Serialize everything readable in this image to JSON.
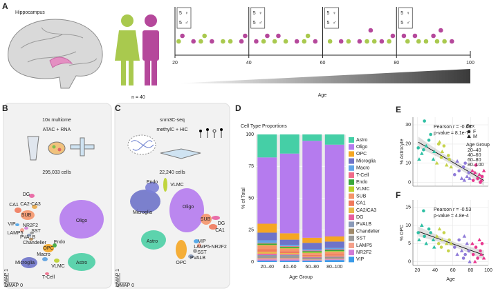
{
  "panel_labels": [
    "A",
    "B",
    "C",
    "D",
    "E",
    "F"
  ],
  "panel_a": {
    "title": "Hippocampus",
    "n_label": "n = 40",
    "female_symbol": "♀",
    "male_symbol": "♂",
    "bin_counts": [
      {
        "female": 5,
        "male": 5
      },
      {
        "female": 5,
        "male": 5
      },
      {
        "female": 5,
        "male": 5
      },
      {
        "female": 5,
        "male": 5
      }
    ]
  },
  "panel_b": {
    "title": "10x multiome",
    "subtitle": "ATAC + RNA",
    "cells": "295,033 cells",
    "umap_x": "UMAP 0",
    "umap_y": "UMAP 1",
    "clusters": [
      "Oligo",
      "Astro",
      "OPC",
      "Microglia",
      "Macro",
      "Endo",
      "VLMC",
      "T-Cell",
      "DG",
      "CA2-CA3",
      "CA1",
      "SUB",
      "VIP",
      "NR2F2",
      "LAMP5",
      "SST",
      "PVALB",
      "Chandelier"
    ]
  },
  "panel_c": {
    "title": "snm3C-seq",
    "subtitle": "methylC + HiC",
    "cells": "22,240 cells",
    "umap_x": "UMAP 0",
    "umap_y": "UMAP 1",
    "clusters": [
      "Oligo",
      "Microglia",
      "Endo",
      "VLMC",
      "SUB",
      "DG",
      "CA1",
      "Astro",
      "VIP",
      "LAMP5-NR2F2",
      "SST",
      "PVALB",
      "OPC"
    ]
  },
  "chart_data": [
    {
      "type": "dot",
      "xlabel": "Age",
      "xlim": [
        20,
        100
      ],
      "xticks": [
        20,
        40,
        60,
        80,
        100
      ],
      "series": [
        {
          "color": "#a9c94e",
          "x": [
            21,
            27,
            28,
            33,
            35,
            44,
            47,
            50,
            55,
            56,
            62,
            67,
            72,
            74,
            78,
            83,
            86,
            88,
            91,
            93
          ]
        },
        {
          "color": "#b5489b",
          "x": [
            22,
            25,
            30,
            38,
            39,
            42,
            45,
            48,
            53,
            58,
            65,
            70,
            73,
            76,
            79,
            82,
            85,
            90,
            92,
            95
          ]
        }
      ]
    },
    {
      "type": "stacked_bar",
      "title": "Cell Type Proportions",
      "xlabel": "Age Group",
      "ylabel": "% of Total",
      "categories": [
        "20–40",
        "40–60",
        "60–80",
        "80–100"
      ],
      "ylim": [
        0,
        100
      ],
      "yticks": [
        0,
        25,
        50,
        75,
        100
      ],
      "grid": true,
      "series": [
        {
          "name": "Astro",
          "color": "#45cfa6",
          "values": [
            18,
            15,
            5,
            8
          ]
        },
        {
          "name": "Oligo",
          "color": "#b57bee",
          "values": [
            52,
            62.5,
            76,
            72
          ]
        },
        {
          "name": "OPC",
          "color": "#f5a623",
          "values": [
            7,
            5,
            4,
            4
          ]
        },
        {
          "name": "Microglia",
          "color": "#6e73c9",
          "values": [
            6,
            4,
            5,
            5
          ]
        },
        {
          "name": "Macro",
          "color": "#62a6e8",
          "values": [
            2,
            1,
            1,
            1
          ]
        },
        {
          "name": "T-Cell",
          "color": "#f06b8a",
          "values": [
            0.5,
            0.5,
            0.5,
            0.5
          ]
        },
        {
          "name": "Endo",
          "color": "#3aa83a",
          "values": [
            1,
            1,
            1,
            1
          ]
        },
        {
          "name": "VLMC",
          "color": "#bad12a",
          "values": [
            0.5,
            0.5,
            0.5,
            0.5
          ]
        },
        {
          "name": "SUB",
          "color": "#f5956a",
          "values": [
            3,
            2,
            1.5,
            2
          ]
        },
        {
          "name": "CA1",
          "color": "#f07a5c",
          "values": [
            2,
            1.5,
            1,
            1
          ]
        },
        {
          "name": "CA2/CA3",
          "color": "#e8b84a",
          "values": [
            1.5,
            1,
            0.5,
            0.5
          ]
        },
        {
          "name": "DG",
          "color": "#e85fa0",
          "values": [
            1,
            0.5,
            0.5,
            0.5
          ]
        },
        {
          "name": "PVALB",
          "color": "#8a9ab8",
          "values": [
            1,
            1,
            0.5,
            0.5
          ]
        },
        {
          "name": "Chandelier",
          "color": "#a08a6a",
          "values": [
            0.5,
            0.5,
            0.5,
            0.5
          ]
        },
        {
          "name": "SST",
          "color": "#9a9a9a",
          "values": [
            1,
            1,
            0.5,
            0.5
          ]
        },
        {
          "name": "LAMP5",
          "color": "#f5a08a",
          "values": [
            1,
            1,
            0.5,
            0.5
          ]
        },
        {
          "name": "NR2F2",
          "color": "#d17bd6",
          "values": [
            1,
            1,
            0.5,
            0.5
          ]
        },
        {
          "name": "VIP",
          "color": "#3a9be8",
          "values": [
            1,
            1,
            1,
            1.5
          ]
        }
      ]
    },
    {
      "type": "scatter",
      "ylabel": "% Astrocyte",
      "xlim": [
        15,
        100
      ],
      "xticks": [
        20,
        40,
        60,
        80,
        100
      ],
      "ylim": [
        -2,
        34
      ],
      "yticks": [
        0,
        10,
        20,
        30
      ],
      "grid": true,
      "annotations": [
        "Pearson r = -0.69",
        "p-value = 8.1e-7"
      ],
      "legend": {
        "sex_title": "Sex",
        "sex_labels": [
          "F",
          "M"
        ],
        "group_title": "Age Group"
      },
      "series": [
        {
          "name": "20–40",
          "color": "#2ebfa3",
          "x": [
            21,
            22,
            25,
            27,
            28,
            30,
            33,
            35,
            38,
            39
          ],
          "values": [
            18,
            12,
            15,
            17,
            32,
            19,
            22,
            25,
            12,
            16
          ],
          "sex": [
            "F",
            "M",
            "M",
            "F",
            "F",
            "M",
            "F",
            "F",
            "M",
            "M"
          ]
        },
        {
          "name": "40–60",
          "color": "#c6d34a",
          "x": [
            42,
            44,
            45,
            47,
            48,
            50,
            53,
            55,
            56,
            58
          ],
          "values": [
            10,
            20,
            21,
            13,
            16,
            19,
            9,
            14,
            12,
            8
          ],
          "sex": [
            "M",
            "F",
            "M",
            "F",
            "M",
            "F",
            "M",
            "F",
            "F",
            "M"
          ]
        },
        {
          "name": "60–80",
          "color": "#8f7bd8",
          "x": [
            62,
            65,
            67,
            70,
            72,
            73,
            74,
            76,
            78,
            79
          ],
          "values": [
            4,
            11,
            6,
            2,
            8,
            1,
            10,
            3,
            5,
            2
          ],
          "sex": [
            "F",
            "M",
            "F",
            "M",
            "F",
            "M",
            "F",
            "M",
            "F",
            "M"
          ]
        },
        {
          "name": "80–100",
          "color": "#e8378e",
          "x": [
            82,
            83,
            85,
            86,
            88,
            90,
            91,
            92,
            93,
            95
          ],
          "values": [
            6,
            1,
            5,
            9,
            2,
            4,
            0,
            1,
            3,
            6
          ],
          "sex": [
            "M",
            "F",
            "M",
            "F",
            "F",
            "M",
            "F",
            "M",
            "F",
            "M"
          ]
        }
      ]
    },
    {
      "type": "scatter",
      "xlabel": "Age",
      "ylabel": "% OPC",
      "xlim": [
        15,
        100
      ],
      "xticks": [
        20,
        40,
        60,
        80,
        100
      ],
      "ylim": [
        -1,
        17
      ],
      "yticks": [
        0,
        5,
        10,
        15
      ],
      "grid": true,
      "annotations": [
        "Pearson r = -0.53",
        "p-value = 4.8e-4"
      ],
      "series": [
        {
          "color": "#2ebfa3",
          "x": [
            21,
            22,
            25,
            27,
            28,
            30,
            33,
            35,
            38,
            39
          ],
          "values": [
            8,
            6,
            10,
            14,
            7,
            5,
            9,
            8,
            6,
            4
          ],
          "sex": [
            "F",
            "M",
            "M",
            "F",
            "F",
            "M",
            "F",
            "F",
            "M",
            "M"
          ]
        },
        {
          "color": "#c6d34a",
          "x": [
            42,
            44,
            45,
            47,
            48,
            50,
            53,
            55,
            56,
            58
          ],
          "values": [
            7,
            5,
            9,
            4,
            6,
            8,
            5,
            3,
            6,
            5
          ],
          "sex": [
            "M",
            "F",
            "M",
            "F",
            "M",
            "F",
            "M",
            "F",
            "F",
            "M"
          ]
        },
        {
          "color": "#8f7bd8",
          "x": [
            62,
            65,
            67,
            70,
            72,
            73,
            74,
            76,
            78,
            79
          ],
          "values": [
            4,
            2,
            6,
            3,
            1,
            7,
            2,
            5,
            3,
            0
          ],
          "sex": [
            "F",
            "M",
            "F",
            "M",
            "F",
            "M",
            "F",
            "M",
            "F",
            "M"
          ]
        },
        {
          "color": "#e8378e",
          "x": [
            82,
            83,
            85,
            86,
            88,
            90,
            91,
            92,
            93,
            95
          ],
          "values": [
            5,
            2,
            0,
            4,
            1,
            6,
            3,
            2,
            5,
            1
          ],
          "sex": [
            "M",
            "F",
            "M",
            "F",
            "F",
            "M",
            "F",
            "M",
            "F",
            "M"
          ]
        }
      ]
    }
  ]
}
